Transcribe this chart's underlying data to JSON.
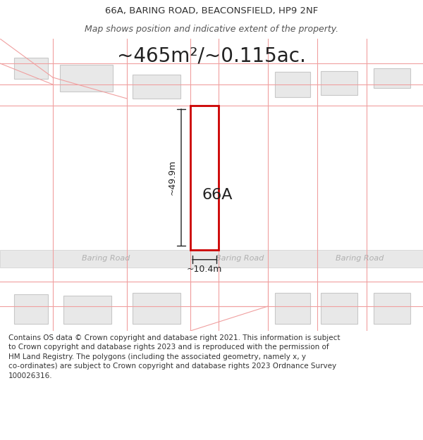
{
  "title_line1": "66A, BARING ROAD, BEACONSFIELD, HP9 2NF",
  "title_line2": "Map shows position and indicative extent of the property.",
  "area_text": "~465m²/~0.115ac.",
  "label_66A": "66A",
  "dim_height": "~49.9m",
  "dim_width": "~10.4m",
  "road_label": "Baring Road",
  "footer_wrapped": "Contains OS data © Crown copyright and database right 2021. This information is subject\nto Crown copyright and database rights 2023 and is reproduced with the permission of\nHM Land Registry. The polygons (including the associated geometry, namely x, y\nco-ordinates) are subject to Crown copyright and database rights 2023 Ordnance Survey\n100026316.",
  "bg_color": "#ffffff",
  "map_bg": "#ffffff",
  "road_bg": "#e8e8e8",
  "plot_outline_color": "#cc0000",
  "neighbor_fill": "#e8e8e8",
  "neighbor_outline": "#c8c8c8",
  "parcel_line_color": "#f0a0a0",
  "road_line_color": "#d0d0d0",
  "road_text_color": "#b0b0b0",
  "dim_line_color": "#222222",
  "title_fontsize": 9.5,
  "area_fontsize": 20,
  "label_fontsize": 16,
  "dim_fontsize": 9,
  "road_fontsize": 8,
  "footer_fontsize": 7.5
}
